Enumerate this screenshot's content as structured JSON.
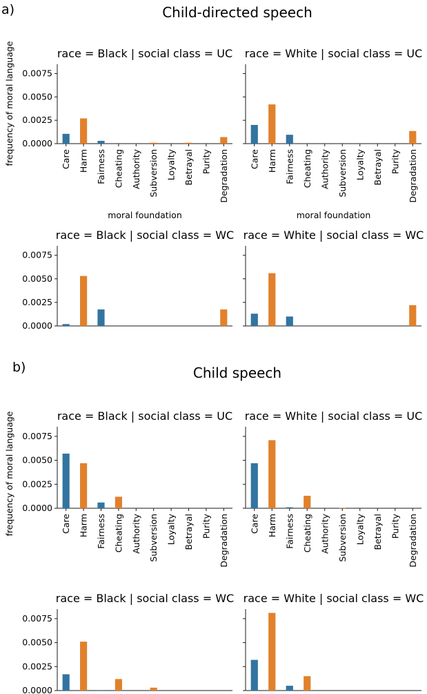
{
  "colors": {
    "virtue": "#3274a1",
    "vice": "#e1812c",
    "axis": "#1a1a1a"
  },
  "sections": [
    {
      "label": "a)",
      "title": "Child-directed speech"
    },
    {
      "label": "b)",
      "title": "Child speech"
    }
  ],
  "y_axis_label": "frequency of moral language",
  "x_axis_label": "moral foundation",
  "chart_data": [
    {
      "type": "bar",
      "section": "a)",
      "title": "race = Black | social class = UC",
      "categories": [
        "Care",
        "Harm",
        "Fairness",
        "Cheating",
        "Authority",
        "Subversion",
        "Loyalty",
        "Betrayal",
        "Purity",
        "Degradation"
      ],
      "values": [
        0.00105,
        0.0027,
        0.0003,
        0,
        0,
        0.0001,
        0,
        0.0001,
        0,
        0.0007
      ],
      "ylim": [
        0,
        0.0085
      ],
      "yticks": [
        "0.0000",
        "0.0025",
        "0.0050",
        "0.0075"
      ],
      "show_xticklabels": true,
      "xlabel": "moral foundation",
      "ylabel": "frequency of moral language"
    },
    {
      "type": "bar",
      "section": "a)",
      "title": "race = White | social class = UC",
      "categories": [
        "Care",
        "Harm",
        "Fairness",
        "Cheating",
        "Authority",
        "Subversion",
        "Loyalty",
        "Betrayal",
        "Purity",
        "Degradation"
      ],
      "values": [
        0.002,
        0.0042,
        0.00095,
        0,
        0,
        0,
        0,
        0,
        0,
        0.00135
      ],
      "ylim": [
        0,
        0.0085
      ],
      "yticks": [
        "0.0000",
        "0.0025",
        "0.0050",
        "0.0075"
      ],
      "show_xticklabels": true,
      "xlabel": "moral foundation",
      "ylabel": ""
    },
    {
      "type": "bar",
      "section": "a)",
      "title": "race = Black | social class = WC",
      "categories": [
        "Care",
        "Harm",
        "Fairness",
        "Cheating",
        "Authority",
        "Subversion",
        "Loyalty",
        "Betrayal",
        "Purity",
        "Degradation"
      ],
      "values": [
        0.0002,
        0.0053,
        0.00175,
        0,
        0,
        0,
        0,
        0,
        0,
        0.00175
      ],
      "ylim": [
        0,
        0.0085
      ],
      "yticks": [
        "0.0000",
        "0.0025",
        "0.0050",
        "0.0075"
      ],
      "show_xticklabels": false,
      "xlabel": "",
      "ylabel": ""
    },
    {
      "type": "bar",
      "section": "a)",
      "title": "race = White | social class = WC",
      "categories": [
        "Care",
        "Harm",
        "Fairness",
        "Cheating",
        "Authority",
        "Subversion",
        "Loyalty",
        "Betrayal",
        "Purity",
        "Degradation"
      ],
      "values": [
        0.0013,
        0.0056,
        0.001,
        0,
        0,
        0,
        0,
        0,
        0,
        0.0022
      ],
      "ylim": [
        0,
        0.0085
      ],
      "yticks": [
        "0.0000",
        "0.0025",
        "0.0050",
        "0.0075"
      ],
      "show_xticklabels": false,
      "xlabel": "",
      "ylabel": ""
    },
    {
      "type": "bar",
      "section": "b)",
      "title": "race = Black | social class = UC",
      "categories": [
        "Care",
        "Harm",
        "Fairness",
        "Cheating",
        "Authority",
        "Subversion",
        "Loyalty",
        "Betrayal",
        "Purity",
        "Degradation"
      ],
      "values": [
        0.0057,
        0.0047,
        0.0006,
        0.0012,
        0,
        0,
        0,
        0,
        0,
        0
      ],
      "ylim": [
        0,
        0.0085
      ],
      "yticks": [
        "0.0000",
        "0.0025",
        "0.0050",
        "0.0075"
      ],
      "show_xticklabels": true,
      "xlabel": "",
      "ylabel": "frequency of moral language"
    },
    {
      "type": "bar",
      "section": "b)",
      "title": "race = White | social class = UC",
      "categories": [
        "Care",
        "Harm",
        "Fairness",
        "Cheating",
        "Authority",
        "Subversion",
        "Loyalty",
        "Betrayal",
        "Purity",
        "Degradation"
      ],
      "values": [
        0.0047,
        0.0071,
        0.0001,
        0.0013,
        0,
        5e-05,
        0,
        0,
        0,
        0
      ],
      "ylim": [
        0,
        0.0085
      ],
      "yticks": [
        "0.0000",
        "0.0025",
        "0.0050",
        "0.0075"
      ],
      "show_xticklabels": true,
      "xlabel": "",
      "ylabel": ""
    },
    {
      "type": "bar",
      "section": "b)",
      "title": "race = Black | social class = WC",
      "categories": [
        "Care",
        "Harm",
        "Fairness",
        "Cheating",
        "Authority",
        "Subversion",
        "Loyalty",
        "Betrayal",
        "Purity",
        "Degradation"
      ],
      "values": [
        0.0017,
        0.0051,
        5e-05,
        0.0012,
        0,
        0.0003,
        0,
        0,
        0,
        0
      ],
      "ylim": [
        0,
        0.0085
      ],
      "yticks": [
        "0.0000",
        "0.0025",
        "0.0050",
        "0.0075"
      ],
      "show_xticklabels": false,
      "xlabel": "",
      "ylabel": ""
    },
    {
      "type": "bar",
      "section": "b)",
      "title": "race = White | social class = WC",
      "categories": [
        "Care",
        "Harm",
        "Fairness",
        "Cheating",
        "Authority",
        "Subversion",
        "Loyalty",
        "Betrayal",
        "Purity",
        "Degradation"
      ],
      "values": [
        0.0032,
        0.0081,
        0.0005,
        0.0015,
        0,
        0,
        0,
        0,
        0,
        0
      ],
      "ylim": [
        0,
        0.0085
      ],
      "yticks": [
        "0.0000",
        "0.0025",
        "0.0050",
        "0.0075"
      ],
      "show_xticklabels": false,
      "xlabel": "",
      "ylabel": ""
    }
  ]
}
